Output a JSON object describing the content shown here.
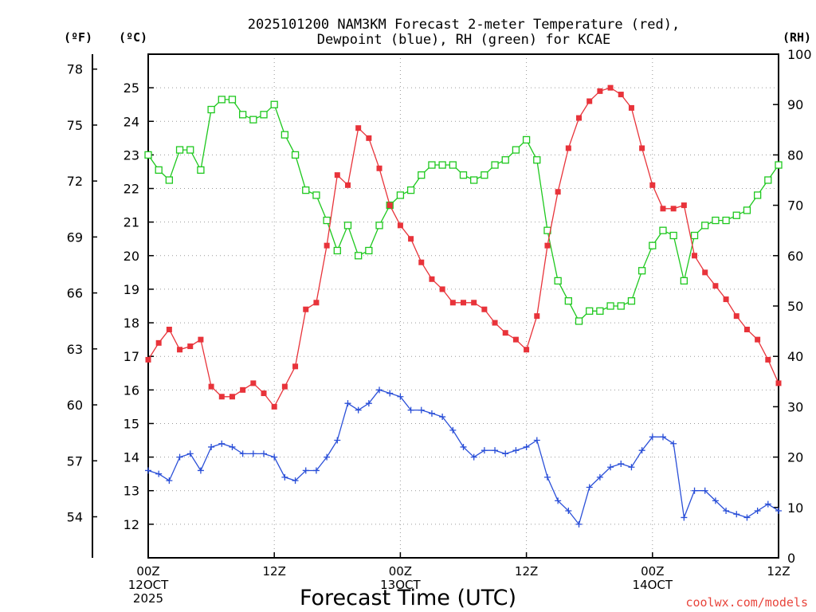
{
  "chart_data": {
    "type": "line",
    "title_line1": "2025101200 NAM3KM Forecast 2-meter Temperature (red),",
    "title_line2": "Dewpoint (blue), RH (green) for KCAE",
    "xlabel": "Forecast Time (UTC)",
    "credit": "coolwx.com/models",
    "units": {
      "fahrenheit": "(ºF)",
      "celsius": "(ºC)",
      "rh": "(RH)"
    },
    "x_ticks": [
      {
        "hour": 0,
        "lines": [
          "00Z",
          "12OCT",
          "2025"
        ]
      },
      {
        "hour": 12,
        "lines": [
          "12Z"
        ]
      },
      {
        "hour": 24,
        "lines": [
          "00Z",
          "13OCT"
        ]
      },
      {
        "hour": 36,
        "lines": [
          "12Z"
        ]
      },
      {
        "hour": 48,
        "lines": [
          "00Z",
          "14OCT"
        ]
      },
      {
        "hour": 60,
        "lines": [
          "12Z"
        ]
      }
    ],
    "xlim": [
      0,
      60
    ],
    "ylim_celsius": [
      11,
      26
    ],
    "ylim_rh": [
      0,
      100
    ],
    "celsius_ticks": [
      12,
      13,
      14,
      15,
      16,
      17,
      18,
      19,
      20,
      21,
      22,
      23,
      24,
      25
    ],
    "fahrenheit_ticks": [
      54,
      57,
      60,
      63,
      66,
      69,
      72,
      75,
      78
    ],
    "rh_ticks": [
      0,
      10,
      20,
      30,
      40,
      50,
      60,
      70,
      80,
      90,
      100
    ],
    "hours": [
      0,
      1,
      2,
      3,
      4,
      5,
      6,
      7,
      8,
      9,
      10,
      11,
      12,
      13,
      14,
      15,
      16,
      17,
      18,
      19,
      20,
      21,
      22,
      23,
      24,
      25,
      26,
      27,
      28,
      29,
      30,
      31,
      32,
      33,
      34,
      35,
      36,
      37,
      38,
      39,
      40,
      41,
      42,
      43,
      44,
      45,
      46,
      47,
      48,
      49,
      50,
      51,
      52,
      53,
      54,
      55,
      56,
      57,
      58,
      59,
      60
    ],
    "series": [
      {
        "name": "2-meter Temperature",
        "unit": "C",
        "color": "#e8333a",
        "marker": "filled-square",
        "values": [
          16.9,
          17.4,
          17.8,
          17.2,
          17.3,
          17.5,
          16.1,
          15.8,
          15.8,
          16.0,
          16.2,
          15.9,
          15.5,
          16.1,
          16.7,
          18.4,
          18.6,
          20.3,
          22.4,
          22.1,
          23.8,
          23.5,
          22.6,
          21.5,
          20.9,
          20.5,
          19.8,
          19.3,
          19.0,
          18.6,
          18.6,
          18.6,
          18.4,
          18.0,
          17.7,
          17.5,
          17.2,
          18.2,
          20.3,
          21.9,
          23.2,
          24.1,
          24.6,
          24.9,
          25.0,
          24.8,
          24.4,
          23.2,
          22.1,
          21.4,
          21.4,
          21.5,
          20.0,
          19.5,
          19.1,
          18.7,
          18.2,
          17.8,
          17.5,
          16.9,
          16.2
        ]
      },
      {
        "name": "Dewpoint",
        "unit": "C",
        "color": "#2a4fd8",
        "marker": "plus",
        "values": [
          13.6,
          13.5,
          13.3,
          14.0,
          14.1,
          13.6,
          14.3,
          14.4,
          14.3,
          14.1,
          14.1,
          14.1,
          14.0,
          13.4,
          13.3,
          13.6,
          13.6,
          14.0,
          14.5,
          15.6,
          15.4,
          15.6,
          16.0,
          15.9,
          15.8,
          15.4,
          15.4,
          15.3,
          15.2,
          14.8,
          14.3,
          14.0,
          14.2,
          14.2,
          14.1,
          14.2,
          14.3,
          14.5,
          13.4,
          12.7,
          12.4,
          12.0,
          13.1,
          13.4,
          13.7,
          13.8,
          13.7,
          14.2,
          14.6,
          14.6,
          14.4,
          12.2,
          13.0,
          13.0,
          12.7,
          12.4,
          12.3,
          12.2,
          12.4,
          12.6,
          12.4
        ]
      },
      {
        "name": "RH",
        "unit": "%",
        "color": "#1ec81e",
        "marker": "open-square",
        "values": [
          80,
          77,
          75,
          81,
          81,
          77,
          89,
          91,
          91,
          88,
          87,
          88,
          90,
          84,
          80,
          73,
          72,
          67,
          61,
          66,
          60,
          61,
          66,
          70,
          72,
          73,
          76,
          78,
          78,
          78,
          76,
          75,
          76,
          78,
          79,
          81,
          83,
          79,
          65,
          55,
          51,
          47,
          49,
          49,
          50,
          50,
          51,
          57,
          62,
          65,
          64,
          55,
          64,
          66,
          67,
          67,
          68,
          69,
          72,
          75,
          78
        ]
      }
    ]
  }
}
